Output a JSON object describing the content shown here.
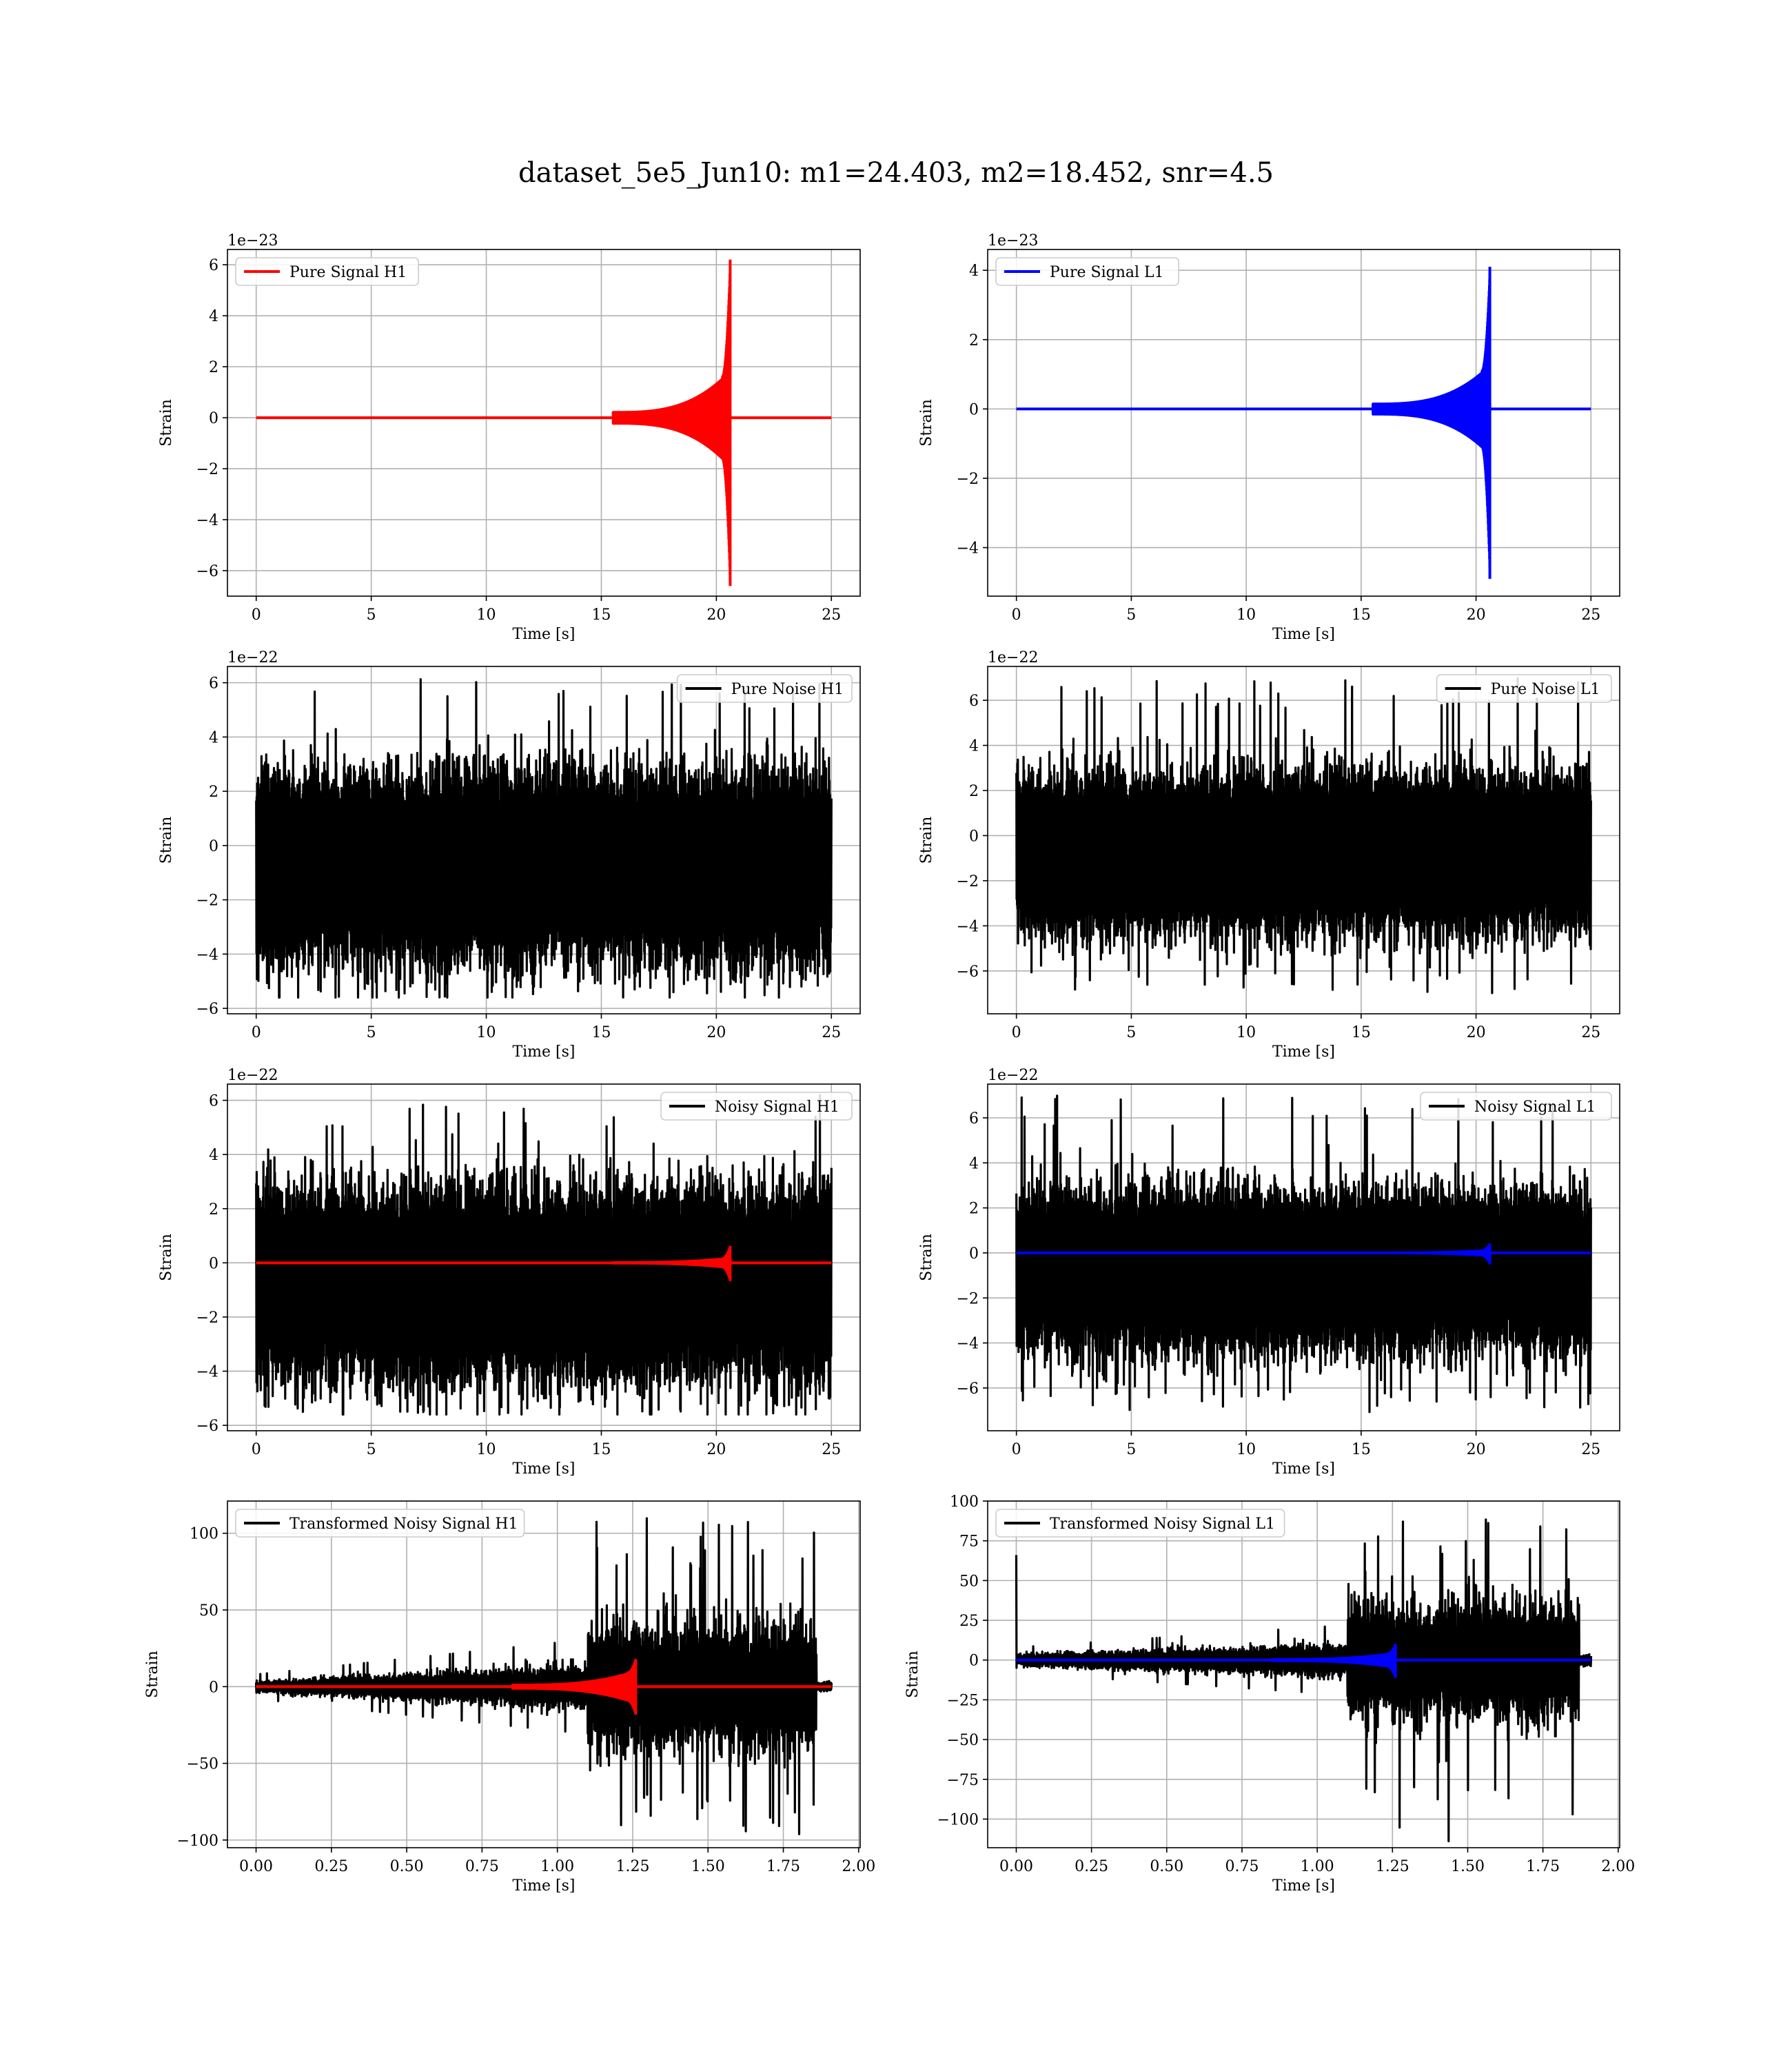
{
  "figure": {
    "suptitle": "dataset_5e5_Jun10: m1=24.403, m2=18.452, snr=4.5"
  },
  "colors": {
    "h1": "#ff0000",
    "l1": "#0000ff",
    "noise": "#000000",
    "grid": "#b0b0b0"
  },
  "chart_data": [
    {
      "id": "pure-signal-h1",
      "type": "line",
      "ylabel": "Strain",
      "xlabel": "Time [s]",
      "offset_text": "1e−23",
      "xlim": [
        -1.25,
        26.25
      ],
      "ylim": [
        -7.0,
        6.6
      ],
      "xticks": [
        0,
        5,
        10,
        15,
        20,
        25
      ],
      "xtick_labels": [
        "0",
        "5",
        "10",
        "15",
        "20",
        "25"
      ],
      "yticks": [
        -6,
        -4,
        -2,
        0,
        2,
        4,
        6
      ],
      "ytick_labels": [
        "−6",
        "−4",
        "−2",
        "0",
        "2",
        "4",
        "6"
      ],
      "legend": {
        "position": "upper-left",
        "entries": [
          {
            "label": "Pure Signal H1",
            "color": "#ff0000"
          }
        ]
      },
      "series": [
        {
          "name": "Pure Signal H1",
          "color": "#ff0000",
          "kind": "chirp",
          "t_end": 25,
          "t_merge": 20.6,
          "peak_pos": 6.2,
          "peak_neg": -6.6,
          "plateau": 1.6,
          "rise_start": 15.5
        }
      ]
    },
    {
      "id": "pure-signal-l1",
      "type": "line",
      "ylabel": "Strain",
      "xlabel": "Time [s]",
      "offset_text": "1e−23",
      "xlim": [
        -1.25,
        26.25
      ],
      "ylim": [
        -5.4,
        4.6
      ],
      "xticks": [
        0,
        5,
        10,
        15,
        20,
        25
      ],
      "xtick_labels": [
        "0",
        "5",
        "10",
        "15",
        "20",
        "25"
      ],
      "yticks": [
        -4,
        -2,
        0,
        2,
        4
      ],
      "ytick_labels": [
        "−4",
        "−2",
        "0",
        "2",
        "4"
      ],
      "legend": {
        "position": "upper-left",
        "entries": [
          {
            "label": "Pure Signal L1",
            "color": "#0000ff"
          }
        ]
      },
      "series": [
        {
          "name": "Pure Signal L1",
          "color": "#0000ff",
          "kind": "chirp",
          "t_end": 25,
          "t_merge": 20.6,
          "peak_pos": 4.1,
          "peak_neg": -4.9,
          "plateau": 1.1,
          "rise_start": 15.5
        }
      ]
    },
    {
      "id": "pure-noise-h1",
      "type": "line",
      "ylabel": "Strain",
      "xlabel": "Time [s]",
      "offset_text": "1e−22",
      "xlim": [
        -1.25,
        26.25
      ],
      "ylim": [
        -6.2,
        6.6
      ],
      "xticks": [
        0,
        5,
        10,
        15,
        20,
        25
      ],
      "xtick_labels": [
        "0",
        "5",
        "10",
        "15",
        "20",
        "25"
      ],
      "yticks": [
        -6,
        -4,
        -2,
        0,
        2,
        4,
        6
      ],
      "ytick_labels": [
        "−6",
        "−4",
        "−2",
        "0",
        "2",
        "4",
        "6"
      ],
      "legend": {
        "position": "upper-right",
        "entries": [
          {
            "label": "Pure Noise H1",
            "color": "#000000"
          }
        ]
      },
      "series": [
        {
          "name": "Pure Noise H1",
          "color": "#000000",
          "kind": "noise",
          "t_end": 25,
          "center": -0.6,
          "band_pos": 3.6,
          "band_neg": -4.0,
          "spike_max": 6.2,
          "spike_min": -5.6
        }
      ]
    },
    {
      "id": "pure-noise-l1",
      "type": "line",
      "ylabel": "Strain",
      "xlabel": "Time [s]",
      "offset_text": "1e−22",
      "xlim": [
        -1.25,
        26.25
      ],
      "ylim": [
        -7.9,
        7.5
      ],
      "xticks": [
        0,
        5,
        10,
        15,
        20,
        25
      ],
      "xtick_labels": [
        "0",
        "5",
        "10",
        "15",
        "20",
        "25"
      ],
      "yticks": [
        -6,
        -4,
        -2,
        0,
        2,
        4,
        6
      ],
      "ytick_labels": [
        "−6",
        "−4",
        "−2",
        "0",
        "2",
        "4",
        "6"
      ],
      "legend": {
        "position": "upper-right",
        "entries": [
          {
            "label": "Pure Noise L1",
            "color": "#000000"
          }
        ]
      },
      "series": [
        {
          "name": "Pure Noise L1",
          "color": "#000000",
          "kind": "noise",
          "t_end": 25,
          "center": -0.6,
          "band_pos": 3.6,
          "band_neg": -4.0,
          "spike_max": 7.0,
          "spike_min": -7.1
        }
      ]
    },
    {
      "id": "noisy-signal-h1",
      "type": "line",
      "ylabel": "Strain",
      "xlabel": "Time [s]",
      "offset_text": "1e−22",
      "xlim": [
        -1.25,
        26.25
      ],
      "ylim": [
        -6.2,
        6.6
      ],
      "xticks": [
        0,
        5,
        10,
        15,
        20,
        25
      ],
      "xtick_labels": [
        "0",
        "5",
        "10",
        "15",
        "20",
        "25"
      ],
      "yticks": [
        -6,
        -4,
        -2,
        0,
        2,
        4,
        6
      ],
      "ytick_labels": [
        "−6",
        "−4",
        "−2",
        "0",
        "2",
        "4",
        "6"
      ],
      "legend": {
        "position": "upper-right",
        "entries": [
          {
            "label": "Noisy Signal H1",
            "color": "#000000"
          }
        ]
      },
      "series": [
        {
          "name": "Noisy Signal H1",
          "color": "#000000",
          "kind": "noise",
          "t_end": 25,
          "center": -0.6,
          "band_pos": 3.6,
          "band_neg": -4.0,
          "spike_max": 6.2,
          "spike_min": -5.6
        },
        {
          "name": "",
          "color": "#ff0000",
          "kind": "chirp",
          "t_end": 25,
          "t_merge": 20.6,
          "peak_pos": 0.62,
          "peak_neg": -0.66,
          "plateau": 0.16,
          "rise_start": 15.5
        }
      ]
    },
    {
      "id": "noisy-signal-l1",
      "type": "line",
      "ylabel": "Strain",
      "xlabel": "Time [s]",
      "offset_text": "1e−22",
      "xlim": [
        -1.25,
        26.25
      ],
      "ylim": [
        -7.9,
        7.5
      ],
      "xticks": [
        0,
        5,
        10,
        15,
        20,
        25
      ],
      "xtick_labels": [
        "0",
        "5",
        "10",
        "15",
        "20",
        "25"
      ],
      "yticks": [
        -6,
        -4,
        -2,
        0,
        2,
        4,
        6
      ],
      "ytick_labels": [
        "−6",
        "−4",
        "−2",
        "0",
        "2",
        "4",
        "6"
      ],
      "legend": {
        "position": "upper-right",
        "entries": [
          {
            "label": "Noisy Signal L1",
            "color": "#000000"
          }
        ]
      },
      "series": [
        {
          "name": "Noisy Signal L1",
          "color": "#000000",
          "kind": "noise",
          "t_end": 25,
          "center": -0.6,
          "band_pos": 3.6,
          "band_neg": -4.0,
          "spike_max": 7.0,
          "spike_min": -7.1
        },
        {
          "name": "",
          "color": "#0000ff",
          "kind": "chirp",
          "t_end": 25,
          "t_merge": 20.6,
          "peak_pos": 0.41,
          "peak_neg": -0.49,
          "plateau": 0.11,
          "rise_start": 15.5
        }
      ]
    },
    {
      "id": "transformed-noisy-signal-h1",
      "type": "line",
      "ylabel": "Strain",
      "xlabel": "Time [s]",
      "offset_text": "",
      "xlim": [
        -0.095,
        2.005
      ],
      "ylim": [
        -105,
        121
      ],
      "xticks": [
        0,
        0.25,
        0.5,
        0.75,
        1.0,
        1.25,
        1.5,
        1.75,
        2.0
      ],
      "xtick_labels": [
        "0.00",
        "0.25",
        "0.50",
        "0.75",
        "1.00",
        "1.25",
        "1.50",
        "1.75",
        "2.00"
      ],
      "yticks": [
        -100,
        -50,
        0,
        50,
        100
      ],
      "ytick_labels": [
        "−100",
        "−50",
        "0",
        "50",
        "100"
      ],
      "legend": {
        "position": "upper-left",
        "entries": [
          {
            "label": "Transformed Noisy Signal H1",
            "color": "#000000"
          }
        ]
      },
      "series": [
        {
          "name": "Transformed Noisy Signal H1",
          "color": "#000000",
          "kind": "tnoise",
          "t_end": 1.91,
          "t_jump": 1.1,
          "t_fade": 1.86,
          "low_amp": 6,
          "high_amp": 40,
          "spike_max": 110,
          "spike_min": -97,
          "ramp": 8
        },
        {
          "name": "",
          "color": "#ff0000",
          "kind": "chirp",
          "t_end": 1.91,
          "t_merge": 1.26,
          "peak_pos": 18,
          "peak_neg": -18,
          "plateau": 9,
          "rise_start": 0.85
        }
      ]
    },
    {
      "id": "transformed-noisy-signal-l1",
      "type": "line",
      "ylabel": "Strain",
      "xlabel": "Time [s]",
      "offset_text": "",
      "xlim": [
        -0.095,
        2.005
      ],
      "ylim": [
        -118,
        100
      ],
      "xticks": [
        0,
        0.25,
        0.5,
        0.75,
        1.0,
        1.25,
        1.5,
        1.75,
        2.0
      ],
      "xtick_labels": [
        "0.00",
        "0.25",
        "0.50",
        "0.75",
        "1.00",
        "1.25",
        "1.50",
        "1.75",
        "2.00"
      ],
      "yticks": [
        -100,
        -75,
        -50,
        -25,
        0,
        25,
        50,
        75,
        100
      ],
      "ytick_labels": [
        "−100",
        "−75",
        "−50",
        "−25",
        "0",
        "25",
        "50",
        "75",
        "100"
      ],
      "legend": {
        "position": "upper-left",
        "entries": [
          {
            "label": "Transformed Noisy Signal L1",
            "color": "#000000"
          }
        ]
      },
      "series": [
        {
          "name": "Transformed Noisy Signal L1",
          "color": "#000000",
          "kind": "tnoise",
          "t_end": 1.91,
          "t_jump": 1.1,
          "t_fade": 1.87,
          "low_amp": 6,
          "high_amp": 36,
          "spike_max": 90,
          "spike_min": -114,
          "ramp": 4,
          "initial_spike": 66
        },
        {
          "name": "",
          "color": "#0000ff",
          "kind": "chirp",
          "t_end": 1.91,
          "t_merge": 1.26,
          "peak_pos": 10,
          "peak_neg": -11,
          "plateau": 4,
          "rise_start": 0.85
        }
      ]
    }
  ]
}
